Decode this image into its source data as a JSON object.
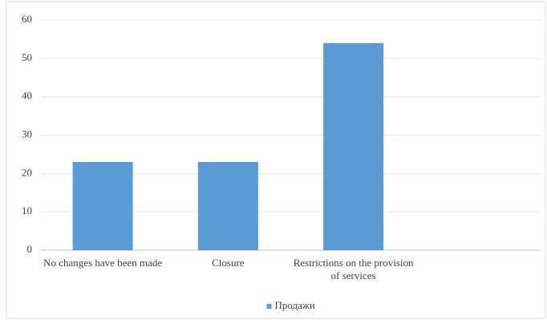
{
  "chart_data": {
    "type": "bar",
    "categories": [
      "No changes have been made",
      "Closure",
      "Restrictions on the provision of services",
      null
    ],
    "series": [
      {
        "name": "Продажи",
        "color": "#5b9bd5",
        "values": [
          23,
          23,
          54,
          null
        ]
      }
    ],
    "ylim": [
      0,
      60
    ],
    "yticks": [
      0,
      10,
      20,
      30,
      40,
      50,
      60
    ],
    "grid": true,
    "legend": "bottom"
  }
}
